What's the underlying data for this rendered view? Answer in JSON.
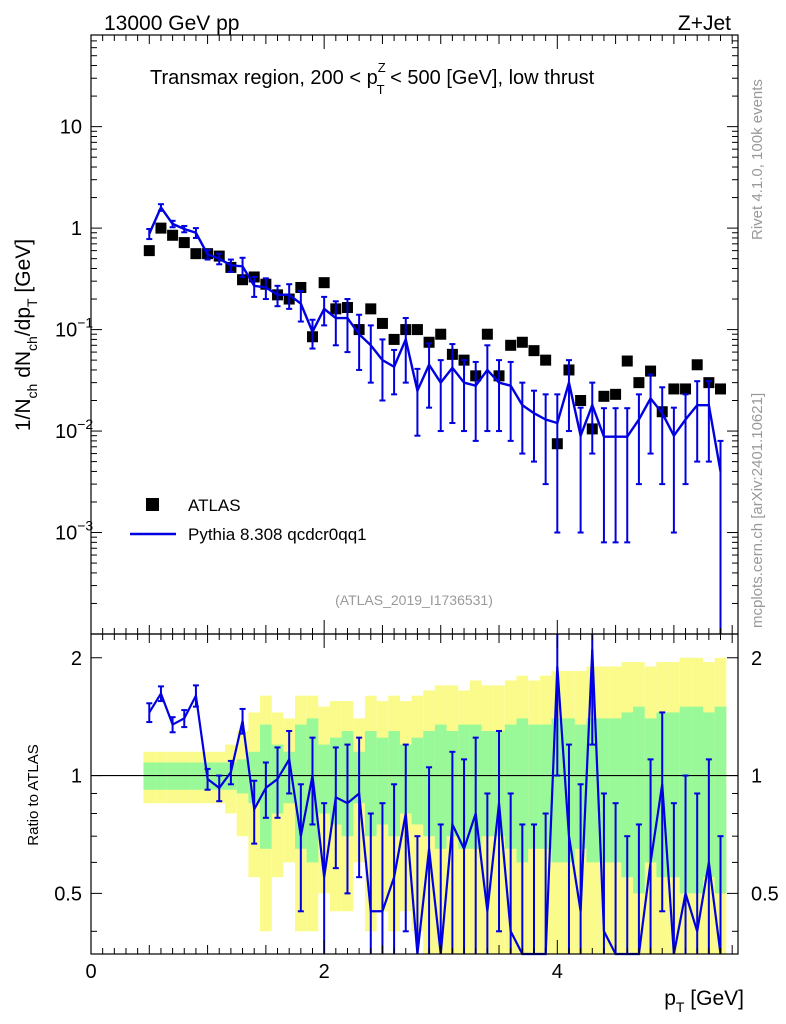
{
  "header": {
    "beam_label": "13000 GeV pp",
    "process_label": "Z+Jet",
    "plot_title_main": "Transmax region, 200 < p",
    "plot_title_sup": "Z",
    "plot_title_sub": "T",
    "plot_title_tail": " < 500 [GeV], low thrust",
    "analysis_id": "(ATLAS_2019_I1736531)"
  },
  "side_labels": {
    "rivet_info": "Rivet 4.1.0,  100k events",
    "source_info": "mcplots.cern.ch [arXiv:2401.10621]"
  },
  "axis_labels": {
    "main_y_prefix": "1/N",
    "main_y_sub1": "ch",
    "main_y_mid": " dN",
    "main_y_sub2": "ch",
    "main_y_mid2": "/dp",
    "main_y_sub3": "T",
    "main_y_suffix": " [GeV]",
    "ratio_y": "Ratio to ATLAS",
    "x_main": "p",
    "x_sub": "T",
    "x_unit": " [GeV]"
  },
  "legend": {
    "data_label": "ATLAS",
    "mc_label": "Pythia 8.308 qcdcr0qq1"
  },
  "colors": {
    "mc": "#0000e0",
    "data": "#000000",
    "band_inner": "#99f999",
    "band_outer": "#fbfb8c"
  },
  "chart_data": {
    "type": "scatter",
    "title": "Transmax region, 200 < pT^Z < 500 [GeV], low thrust",
    "xlabel": "pT [GeV]",
    "ylabel": "1/Nch dNch/dpT [GeV]",
    "xlim": [
      0,
      5.55
    ],
    "ylim": [
      0.0001,
      80
    ],
    "yscale": "log",
    "x_ticks": [
      "0",
      "2",
      "4"
    ],
    "y_ticks": [
      "10^-3",
      "10^-2",
      "10^-1",
      "1",
      "10"
    ],
    "ratio_ylim": [
      0.35,
      2.3
    ],
    "ratio_ticks": [
      "0.5",
      "1",
      "2"
    ],
    "x": [
      0.5,
      0.6,
      0.7,
      0.8,
      0.9,
      1.0,
      1.1,
      1.2,
      1.3,
      1.4,
      1.5,
      1.6,
      1.7,
      1.8,
      1.9,
      2.0,
      2.1,
      2.2,
      2.3,
      2.4,
      2.5,
      2.6,
      2.7,
      2.8,
      2.9,
      3.0,
      3.1,
      3.2,
      3.3,
      3.4,
      3.5,
      3.6,
      3.7,
      3.8,
      3.9,
      4.0,
      4.1,
      4.2,
      4.3,
      4.4,
      4.5,
      4.6,
      4.7,
      4.8,
      4.9,
      5.0,
      5.1,
      5.2,
      5.3,
      5.4
    ],
    "series": [
      {
        "name": "ATLAS",
        "values": [
          0.6,
          1.0,
          0.85,
          0.72,
          0.56,
          0.56,
          0.53,
          0.41,
          0.31,
          0.33,
          0.28,
          0.22,
          0.2,
          0.26,
          0.085,
          0.29,
          0.16,
          0.165,
          0.1,
          0.16,
          0.115,
          0.08,
          0.1,
          0.1,
          0.075,
          0.09,
          0.057,
          0.05,
          0.035,
          0.09,
          0.035,
          0.07,
          0.075,
          0.062,
          0.05,
          0.0075,
          0.04,
          0.02,
          0.0105,
          0.022,
          0.023,
          0.049,
          0.03,
          0.039,
          0.0155,
          0.026,
          0.026,
          0.045,
          0.03,
          0.026
        ]
      },
      {
        "name": "Pythia 8.308 qcdcr0qq1",
        "values": [
          0.88,
          1.6,
          1.1,
          0.98,
          0.9,
          0.55,
          0.5,
          0.43,
          0.42,
          0.27,
          0.26,
          0.22,
          0.22,
          0.18,
          0.095,
          0.16,
          0.13,
          0.13,
          0.09,
          0.07,
          0.05,
          0.043,
          0.08,
          0.025,
          0.045,
          0.03,
          0.042,
          0.03,
          0.028,
          0.04,
          0.03,
          0.028,
          0.018,
          0.015,
          0.013,
          0.012,
          0.03,
          0.009,
          0.018,
          0.0088,
          0.0088,
          0.0088,
          0.013,
          0.021,
          0.015,
          0.009,
          0.013,
          0.018,
          0.018,
          0.004
        ]
      }
    ],
    "mc_errors": [
      0.1,
      0.12,
      0.08,
      0.07,
      0.1,
      0.06,
      0.06,
      0.06,
      0.09,
      0.06,
      0.06,
      0.05,
      0.06,
      0.06,
      0.03,
      0.05,
      0.06,
      0.07,
      0.05,
      0.04,
      0.03,
      0.02,
      0.05,
      0.016,
      0.028,
      0.02,
      0.03,
      0.02,
      0.02,
      0.03,
      0.02,
      0.02,
      0.012,
      0.01,
      0.01,
      0.011,
      0.02,
      0.008,
      0.012,
      0.008,
      0.008,
      0.008,
      0.01,
      0.015,
      0.012,
      0.008,
      0.01,
      0.013,
      0.013,
      0.004
    ],
    "ratio": [
      1.45,
      1.62,
      1.35,
      1.4,
      1.6,
      0.98,
      0.93,
      1.02,
      1.38,
      0.82,
      0.93,
      0.98,
      1.1,
      0.7,
      1.0,
      0.55,
      0.88,
      0.85,
      0.9,
      0.45,
      0.45,
      0.55,
      0.8,
      0.3,
      0.65,
      0.35,
      0.75,
      0.65,
      0.8,
      0.45,
      0.85,
      0.4,
      0.25,
      0.25,
      0.3,
      1.9,
      0.7,
      0.45,
      2.1,
      0.4,
      0.35,
      0.2,
      0.25,
      0.6,
      0.95,
      0.35,
      0.5,
      0.4,
      0.6,
      0.2
    ],
    "ratio_errors": [
      0.08,
      0.07,
      0.06,
      0.07,
      0.1,
      0.06,
      0.07,
      0.07,
      0.1,
      0.15,
      0.15,
      0.2,
      0.2,
      0.25,
      0.25,
      0.3,
      0.3,
      0.35,
      0.35,
      0.35,
      0.4,
      0.4,
      0.4,
      0.4,
      0.4,
      0.4,
      0.4,
      0.45,
      0.45,
      0.45,
      0.45,
      0.5,
      0.5,
      0.5,
      0.5,
      0.9,
      0.5,
      0.5,
      0.9,
      0.5,
      0.5,
      0.5,
      0.5,
      0.5,
      0.5,
      0.5,
      0.5,
      0.5,
      0.5,
      0.5
    ],
    "band_inner": [
      0.08,
      0.08,
      0.08,
      0.08,
      0.08,
      0.08,
      0.08,
      0.08,
      0.1,
      0.15,
      0.35,
      0.2,
      0.15,
      0.35,
      0.4,
      0.2,
      0.25,
      0.3,
      0.15,
      0.3,
      0.25,
      0.3,
      0.2,
      0.25,
      0.3,
      0.35,
      0.3,
      0.35,
      0.35,
      0.3,
      0.3,
      0.35,
      0.4,
      0.35,
      0.35,
      0.4,
      0.4,
      0.35,
      0.4,
      0.4,
      0.4,
      0.45,
      0.5,
      0.4,
      0.45,
      0.45,
      0.5,
      0.5,
      0.45,
      0.5
    ],
    "band_outer": [
      0.15,
      0.15,
      0.15,
      0.15,
      0.15,
      0.15,
      0.15,
      0.2,
      0.3,
      0.45,
      0.6,
      0.45,
      0.4,
      0.6,
      0.6,
      0.5,
      0.55,
      0.55,
      0.4,
      0.6,
      0.55,
      0.6,
      0.55,
      0.6,
      0.65,
      0.7,
      0.7,
      0.65,
      0.75,
      0.7,
      0.7,
      0.75,
      0.8,
      0.75,
      0.8,
      0.85,
      0.85,
      0.85,
      0.9,
      0.9,
      0.9,
      0.95,
      0.95,
      0.9,
      0.95,
      0.95,
      1.0,
      1.0,
      0.95,
      1.0
    ]
  }
}
